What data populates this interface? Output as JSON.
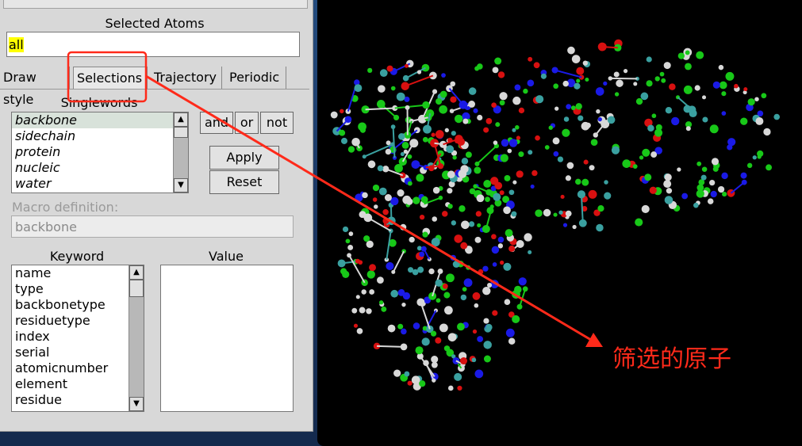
{
  "selected_atoms": {
    "label": "Selected Atoms",
    "value": "all"
  },
  "tabs": [
    {
      "label": "Draw style"
    },
    {
      "label": "Selections"
    },
    {
      "label": "Trajectory"
    },
    {
      "label": "Periodic"
    }
  ],
  "singlewords": {
    "label": "Singlewords",
    "items": [
      "backbone",
      "sidechain",
      "protein",
      "nucleic",
      "water"
    ]
  },
  "logic_buttons": {
    "and": "and",
    "or": "or",
    "not": "not"
  },
  "apply_label": "Apply",
  "reset_label": "Reset",
  "macro": {
    "label": "Macro definition:",
    "value": "backbone"
  },
  "keyword": {
    "label": "Keyword",
    "items": [
      "name",
      "type",
      "backbonetype",
      "residuetype",
      "index",
      "serial",
      "atomicnumber",
      "element",
      "residue"
    ]
  },
  "value": {
    "label": "Value"
  },
  "annotation": {
    "text": "筛选的原子",
    "color": "#ff2a1a"
  },
  "colors": {
    "atom_green": "#18c818",
    "atom_blue": "#1a1ae6",
    "atom_red": "#d81010",
    "atom_white": "#d8d8d8",
    "atom_cyan": "#3aa0a0"
  }
}
